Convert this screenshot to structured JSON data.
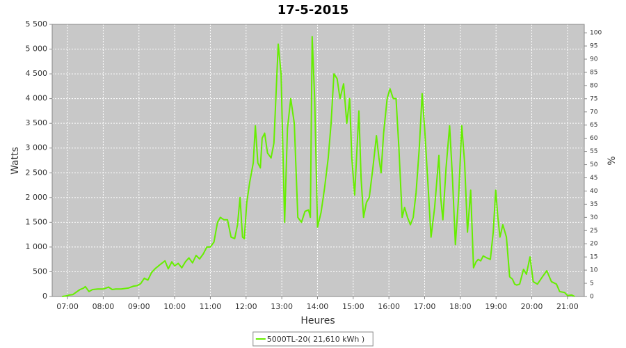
{
  "chart_data": {
    "type": "line",
    "title": "17-5-2015",
    "x_label": "Heures",
    "y_label": "Watts",
    "y2_label": "%",
    "x": [
      6.85,
      6.95,
      7.05,
      7.15,
      7.25,
      7.35,
      7.45,
      7.5,
      7.6,
      7.7,
      7.85,
      8.0,
      8.15,
      8.25,
      8.35,
      8.5,
      8.7,
      8.85,
      8.95,
      9.05,
      9.15,
      9.25,
      9.35,
      9.45,
      9.6,
      9.73,
      9.82,
      9.92,
      10.0,
      10.1,
      10.2,
      10.3,
      10.4,
      10.5,
      10.6,
      10.7,
      10.8,
      10.9,
      11.0,
      11.1,
      11.2,
      11.28,
      11.38,
      11.48,
      11.58,
      11.68,
      11.76,
      11.83,
      11.9,
      11.95,
      12.02,
      12.1,
      12.2,
      12.26,
      12.33,
      12.4,
      12.45,
      12.52,
      12.6,
      12.7,
      12.78,
      12.9,
      12.98,
      13.08,
      13.16,
      13.25,
      13.35,
      13.45,
      13.55,
      13.65,
      13.75,
      13.8,
      13.85,
      13.92,
      14.0,
      14.1,
      14.2,
      14.3,
      14.38,
      14.46,
      14.55,
      14.63,
      14.73,
      14.82,
      14.9,
      14.96,
      15.04,
      15.16,
      15.22,
      15.29,
      15.37,
      15.45,
      15.55,
      15.65,
      15.72,
      15.78,
      15.85,
      15.95,
      16.03,
      16.12,
      16.2,
      16.28,
      16.37,
      16.44,
      16.52,
      16.6,
      16.68,
      16.76,
      16.85,
      16.93,
      17.0,
      17.1,
      17.18,
      17.28,
      17.4,
      17.45,
      17.51,
      17.6,
      17.7,
      17.78,
      17.86,
      17.95,
      18.04,
      18.12,
      18.2,
      18.29,
      18.37,
      18.44,
      18.5,
      18.57,
      18.64,
      18.74,
      18.84,
      18.92,
      18.99,
      19.05,
      19.11,
      19.19,
      19.29,
      19.38,
      19.46,
      19.52,
      19.58,
      19.66,
      19.77,
      19.85,
      19.95,
      20.04,
      20.16,
      20.3,
      20.42,
      20.55,
      20.69,
      20.78,
      20.92,
      21.0,
      21.12,
      21.2
    ],
    "series": [
      {
        "name": "5000TL-20( 21,610 kWh )",
        "color": "#66ee00",
        "values": [
          0,
          10,
          30,
          40,
          90,
          140,
          170,
          200,
          100,
          140,
          150,
          150,
          190,
          140,
          150,
          150,
          170,
          210,
          220,
          260,
          370,
          330,
          480,
          560,
          650,
          720,
          560,
          700,
          620,
          670,
          580,
          700,
          780,
          680,
          830,
          760,
          860,
          1000,
          1000,
          1100,
          1500,
          1600,
          1550,
          1550,
          1200,
          1170,
          1450,
          2000,
          1200,
          1170,
          1900,
          2300,
          2700,
          3450,
          2700,
          2600,
          3200,
          3300,
          2900,
          2800,
          3100,
          5100,
          4500,
          1500,
          3400,
          4000,
          3500,
          1600,
          1500,
          1720,
          1750,
          1600,
          5250,
          4000,
          1400,
          1700,
          2200,
          2800,
          3500,
          4500,
          4400,
          4000,
          4300,
          3500,
          4000,
          2800,
          2050,
          3750,
          2400,
          1600,
          1900,
          2000,
          2600,
          3250,
          2800,
          2500,
          3300,
          4000,
          4200,
          4000,
          4000,
          3000,
          1600,
          1800,
          1600,
          1450,
          1600,
          2100,
          3000,
          4100,
          3400,
          2200,
          1200,
          1800,
          2850,
          2000,
          1550,
          2600,
          3450,
          2400,
          1050,
          2000,
          3450,
          2700,
          1300,
          2150,
          580,
          700,
          750,
          720,
          820,
          780,
          750,
          1300,
          2150,
          1600,
          1200,
          1450,
          1200,
          400,
          350,
          250,
          230,
          250,
          550,
          450,
          800,
          300,
          250,
          400,
          520,
          300,
          250,
          100,
          80,
          20,
          30,
          0
        ]
      }
    ],
    "xlim": [
      6.57,
      21.47
    ],
    "xticks": [
      {
        "value": 7,
        "label": "07:00"
      },
      {
        "value": 8,
        "label": "08:00"
      },
      {
        "value": 9,
        "label": "09:00"
      },
      {
        "value": 10,
        "label": "10:00"
      },
      {
        "value": 11,
        "label": "11:00"
      },
      {
        "value": 12,
        "label": "12:00"
      },
      {
        "value": 13,
        "label": "13:00"
      },
      {
        "value": 14,
        "label": "14:00"
      },
      {
        "value": 15,
        "label": "15:00"
      },
      {
        "value": 16,
        "label": "16:00"
      },
      {
        "value": 17,
        "label": "17:00"
      },
      {
        "value": 18,
        "label": "18:00"
      },
      {
        "value": 19,
        "label": "19:00"
      },
      {
        "value": 20,
        "label": "20:00"
      },
      {
        "value": 21,
        "label": "21:00"
      }
    ],
    "ylim": [
      0,
      5500
    ],
    "yticks": [
      0,
      500,
      {
        "value": 1000,
        "label": "1 000"
      },
      {
        "value": 1500,
        "label": "1 500"
      },
      {
        "value": 2000,
        "label": "2 000"
      },
      {
        "value": 2500,
        "label": "2 500"
      },
      {
        "value": 3000,
        "label": "3 000"
      },
      {
        "value": 3500,
        "label": "3 500"
      },
      {
        "value": 4000,
        "label": "4 000"
      },
      {
        "value": 4500,
        "label": "4 500"
      },
      {
        "value": 5000,
        "label": "5 000"
      },
      {
        "value": 5500,
        "label": "5 500"
      }
    ],
    "y2lim": [
      0,
      103.2
    ],
    "y2ticks": [
      0,
      5,
      10,
      15,
      20,
      25,
      30,
      35,
      40,
      45,
      50,
      55,
      60,
      65,
      70,
      75,
      80,
      85,
      90,
      95,
      100
    ],
    "grid": true,
    "plot_background": "#c8c8c8",
    "legend": "bottom"
  }
}
